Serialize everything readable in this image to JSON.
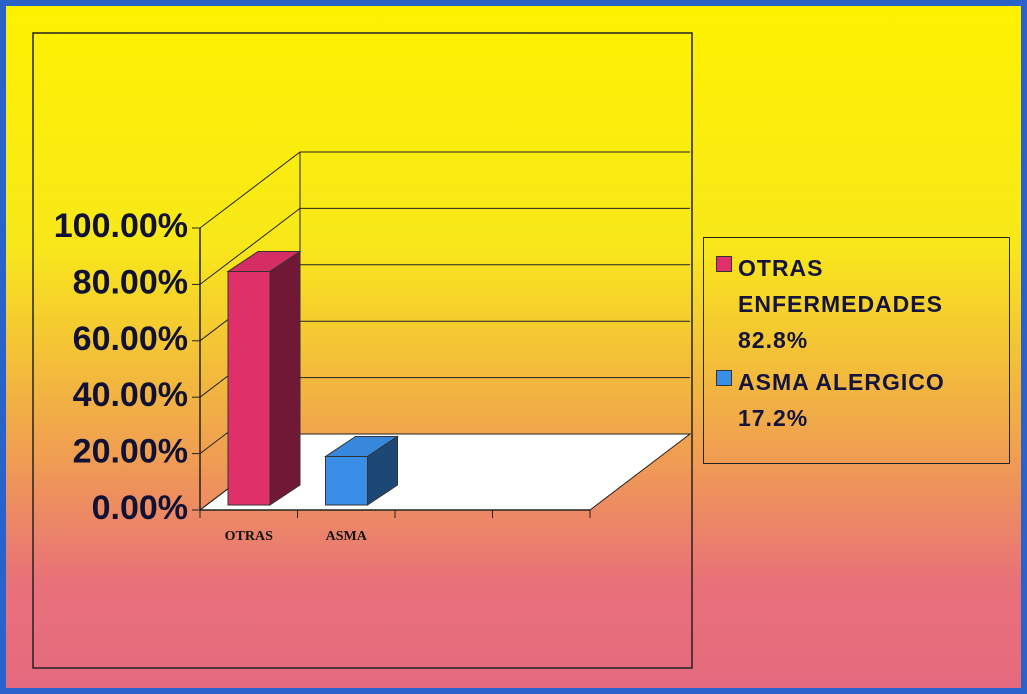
{
  "chart_data": {
    "type": "bar3d",
    "categories": [
      "OTRAS",
      "ASMA"
    ],
    "values": [
      82.8,
      17.2
    ],
    "value_labels": [
      "82.8%",
      "17.2%"
    ],
    "colors": [
      "#e0306a",
      "#3a8ee8"
    ],
    "legend": [
      "OTRAS ENFERMEDADES",
      "ASMA ALERGICO"
    ],
    "legend_position": "right",
    "ylim": [
      0,
      100
    ],
    "yticks": [
      {
        "value": 0,
        "label": "0.00%"
      },
      {
        "value": 20,
        "label": "20.00%"
      },
      {
        "value": 40,
        "label": "40.00%"
      },
      {
        "value": 60,
        "label": "60.00%"
      },
      {
        "value": 80,
        "label": "80.00%"
      },
      {
        "value": 100,
        "label": "100.00%"
      }
    ],
    "grid": true
  }
}
